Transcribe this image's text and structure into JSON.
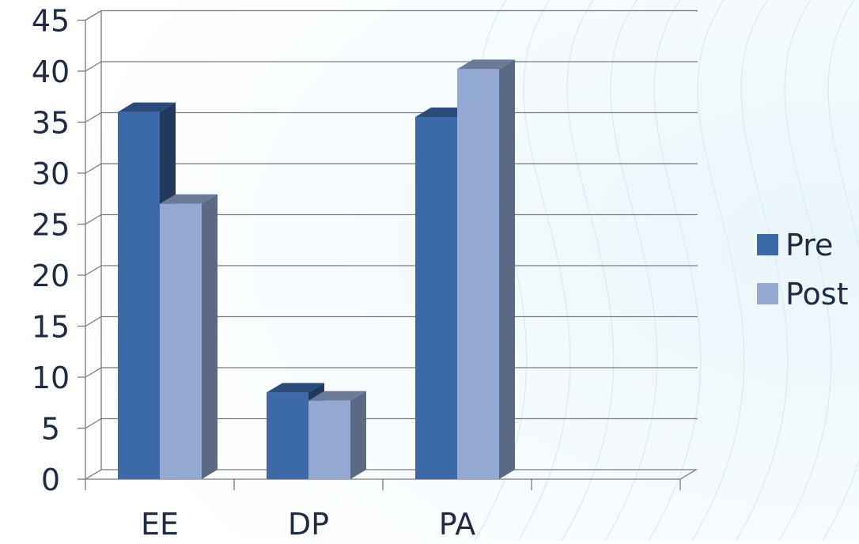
{
  "chart_data": {
    "type": "bar",
    "categories": [
      "EE",
      "DP",
      "PA",
      ""
    ],
    "series": [
      {
        "name": "Pre",
        "values": [
          36,
          8.5,
          35.5,
          null
        ]
      },
      {
        "name": "Post",
        "values": [
          27,
          7.7,
          40.2,
          null
        ]
      }
    ],
    "title": "",
    "xlabel": "",
    "ylabel": "",
    "ylim": [
      0,
      45
    ],
    "yticks": [
      0,
      5,
      10,
      15,
      20,
      25,
      30,
      35,
      40,
      45
    ],
    "grid": true,
    "legend": "right",
    "colors": {
      "Pre": "#3c69a7",
      "Post": "#93a9d2",
      "grid": "#7b7b7b",
      "text": "#1f2a44"
    }
  }
}
